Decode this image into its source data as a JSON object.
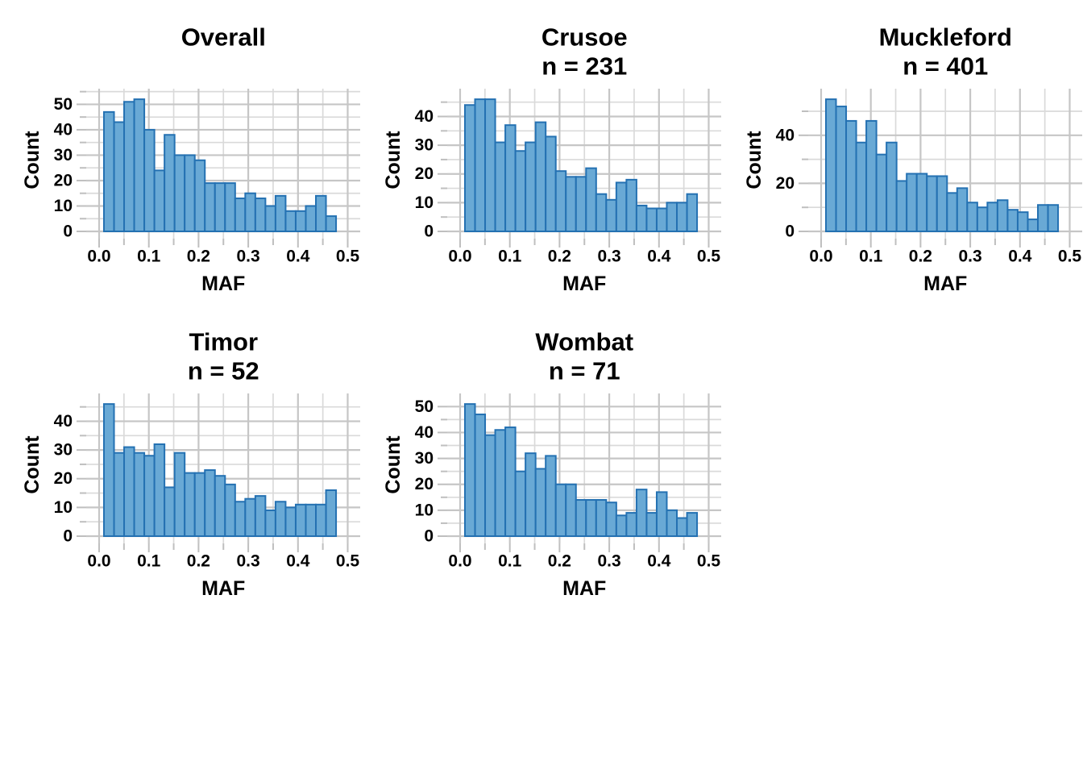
{
  "style": {
    "background": "#FFFFFF",
    "bar_fill": "#69A9D5",
    "bar_stroke": "#2471B2",
    "grid_major": "#C6C6C6",
    "grid_minor": "#DADADA",
    "tick_color": "#BFBFBF",
    "text_color": "#000000"
  },
  "axis": {
    "x_title": "MAF",
    "y_title": "Count",
    "x_tick_labels": [
      "0.0",
      "0.1",
      "0.2",
      "0.3",
      "0.4",
      "0.5"
    ],
    "x_range": [
      0,
      0.5
    ],
    "bin_start": 0.0097,
    "bin_width": 0.0203
  },
  "chart_data": {
    "type": "bar",
    "subtype": "histogram",
    "xlabel": "MAF",
    "ylabel": "Count",
    "grid": true,
    "panels": [
      {
        "title": "Overall",
        "subtitle": "",
        "ymax": 52,
        "y_major_step": 10,
        "y_minor_step": 5,
        "y_tick_labels": [
          0,
          10,
          20,
          30,
          40,
          50
        ],
        "counts": [
          47,
          43,
          51,
          52,
          40,
          24,
          38,
          30,
          30,
          28,
          19,
          19,
          19,
          13,
          15,
          13,
          10,
          14,
          8,
          8,
          10,
          14,
          6
        ]
      },
      {
        "title": "Crusoe",
        "subtitle": "n = 231",
        "n": 231,
        "ymax": 46,
        "y_major_step": 10,
        "y_minor_step": 5,
        "y_tick_labels": [
          0,
          10,
          20,
          30,
          40
        ],
        "counts": [
          44,
          46,
          46,
          31,
          37,
          28,
          31,
          38,
          33,
          21,
          19,
          19,
          22,
          13,
          11,
          17,
          18,
          9,
          8,
          8,
          10,
          10,
          13
        ]
      },
      {
        "title": "Muckleford",
        "subtitle": "n = 401",
        "n": 401,
        "ymax": 55,
        "y_major_step": 20,
        "y_minor_step": 10,
        "y_tick_labels": [
          0,
          20,
          40
        ],
        "counts": [
          55,
          52,
          46,
          37,
          46,
          32,
          37,
          21,
          24,
          24,
          23,
          23,
          16,
          18,
          12,
          10,
          12,
          13,
          9,
          8,
          5,
          11,
          11
        ]
      },
      {
        "title": "Timor",
        "subtitle": "n = 52",
        "n": 52,
        "ymax": 46,
        "y_major_step": 10,
        "y_minor_step": 5,
        "y_tick_labels": [
          0,
          10,
          20,
          30,
          40
        ],
        "counts": [
          46,
          29,
          31,
          29,
          28,
          32,
          17,
          29,
          22,
          22,
          23,
          21,
          18,
          12,
          13,
          14,
          9,
          12,
          10,
          11,
          11,
          11,
          16
        ]
      },
      {
        "title": "Wombat",
        "subtitle": "n = 71",
        "n": 71,
        "ymax": 51,
        "y_major_step": 10,
        "y_minor_step": 5,
        "y_tick_labels": [
          0,
          10,
          20,
          30,
          40,
          50
        ],
        "counts": [
          51,
          47,
          39,
          41,
          42,
          25,
          32,
          26,
          31,
          20,
          20,
          14,
          14,
          14,
          13,
          8,
          9,
          18,
          9,
          17,
          10,
          7,
          9
        ]
      }
    ]
  }
}
